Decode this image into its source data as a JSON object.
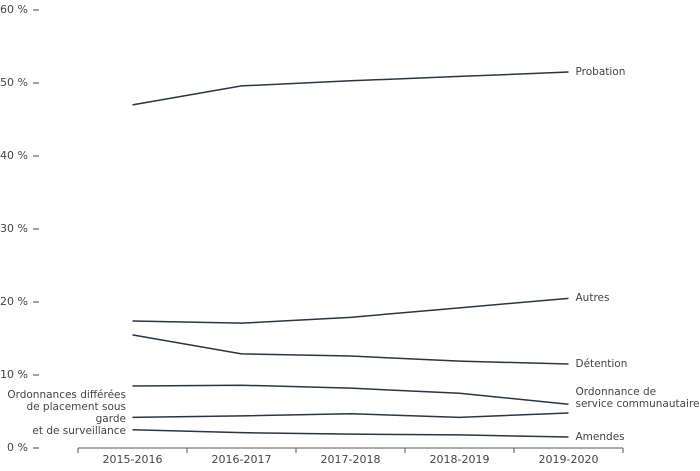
{
  "chart_data": {
    "type": "line",
    "categories": [
      "2015-2016",
      "2016-2017",
      "2017-2018",
      "2018-2019",
      "2019-2020"
    ],
    "ylim": [
      0,
      60
    ],
    "yticks": [
      {
        "value": 0,
        "label": "0 %"
      },
      {
        "value": 10,
        "label": "10 %"
      },
      {
        "value": 20,
        "label": "20 %"
      },
      {
        "value": 30,
        "label": "30 %"
      },
      {
        "value": 40,
        "label": "40 %"
      },
      {
        "value": 50,
        "label": "50 %"
      },
      {
        "value": 60,
        "label": "60 %"
      }
    ],
    "series": [
      {
        "name": "Probation",
        "color": "#2b3345",
        "values": [
          47.0,
          49.6,
          50.3,
          50.9,
          51.5
        ]
      },
      {
        "name": "Autres",
        "color": "#2b3345",
        "values": [
          17.4,
          17.1,
          17.9,
          19.2,
          20.5
        ]
      },
      {
        "name": "Détention",
        "color": "#2b3345",
        "values": [
          15.5,
          12.9,
          12.6,
          11.9,
          11.5
        ]
      },
      {
        "name": "Ordonnance de\nservice communautaire",
        "color": "#2b3345",
        "values": [
          8.5,
          8.6,
          8.2,
          7.5,
          6.0
        ]
      },
      {
        "name": "Ordonnances différées\nde placement sous garde\net de surveillance",
        "color": "#2b3345",
        "values": [
          4.2,
          4.4,
          4.7,
          4.2,
          4.8
        ]
      },
      {
        "name": "Amendes",
        "color": "#2b3345",
        "values": [
          2.5,
          2.1,
          1.9,
          1.8,
          1.5
        ]
      }
    ]
  }
}
